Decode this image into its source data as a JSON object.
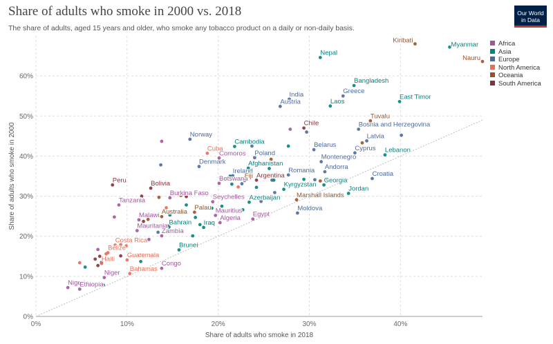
{
  "header": {
    "title": "Share of adults who smoke in 2000 vs. 2018",
    "subtitle": "The share of adults, aged 15 years and older, who smoke any tobacco product on a daily or non-daily basis.",
    "logo_line1": "Our World",
    "logo_line2": "in Data"
  },
  "colors": {
    "Africa": "#a2559c",
    "Asia": "#00847e",
    "Europe": "#4c6a9c",
    "North America": "#e56e5a",
    "Oceania": "#9a5129",
    "South America": "#883039",
    "grid": "#dddddd",
    "axis_text": "#666666"
  },
  "chart_data": {
    "type": "scatter",
    "xlabel": "Share of adults who smoke in 2018",
    "ylabel": "Share of adults who smoke in 2000",
    "xlim": [
      0,
      49
    ],
    "ylim": [
      0,
      70
    ],
    "x_ticks": [
      0,
      10,
      20,
      30,
      40
    ],
    "y_ticks": [
      0,
      10,
      20,
      30,
      40,
      50,
      60
    ],
    "x_tick_labels": [
      "0%",
      "10%",
      "20%",
      "30%",
      "40%"
    ],
    "y_tick_labels": [
      "0%",
      "10%",
      "20%",
      "30%",
      "40%",
      "50%",
      "60%"
    ],
    "grid": true,
    "reference_line": "y = x",
    "legend": {
      "position": "top-right",
      "entries": [
        "Africa",
        "Asia",
        "Europe",
        "North America",
        "Oceania",
        "South America"
      ]
    },
    "series": [
      {
        "name": "Africa",
        "points": [
          {
            "label": "Nigeria",
            "x": 3.5,
            "y": 7.2
          },
          {
            "label": "Ethiopia",
            "x": 4.8,
            "y": 6.8
          },
          {
            "label": "Niger",
            "x": 7.5,
            "y": 9.7
          },
          {
            "label": "Tanzania",
            "x": 9.1,
            "y": 27.8
          },
          {
            "label": "Malawi",
            "x": 11.3,
            "y": 24.1
          },
          {
            "label": "Mauritania",
            "x": 11.1,
            "y": 21.4
          },
          {
            "label": "Zambia",
            "x": 13.8,
            "y": 20.1
          },
          {
            "label": "Congo",
            "x": 13.8,
            "y": 12.0
          },
          {
            "label": "Burkina Faso",
            "x": 14.7,
            "y": 29.6
          },
          {
            "label": "Comoros",
            "x": 20.1,
            "y": 39.5
          },
          {
            "label": "Botswana",
            "x": 20.1,
            "y": 33.2
          },
          {
            "label": "Seychelles",
            "x": 19.4,
            "y": 28.6
          },
          {
            "label": "Mauritius",
            "x": 19.7,
            "y": 25.2
          },
          {
            "label": "Algeria",
            "x": 20.2,
            "y": 23.4
          },
          {
            "label": "Egypt",
            "x": 23.8,
            "y": 24.3
          },
          {
            "label": "",
            "x": 13.8,
            "y": 43.7
          },
          {
            "label": "",
            "x": 8.6,
            "y": 24.8
          },
          {
            "label": "",
            "x": 6.8,
            "y": 16.7
          },
          {
            "label": "",
            "x": 10.4,
            "y": 18.7
          },
          {
            "label": "",
            "x": 12.4,
            "y": 19.2
          },
          {
            "label": "",
            "x": 27.9,
            "y": 46.7
          }
        ]
      },
      {
        "name": "Asia",
        "points": [
          {
            "label": "Myanmar",
            "x": 45.4,
            "y": 67.2
          },
          {
            "label": "Nepal",
            "x": 31.2,
            "y": 64.6
          },
          {
            "label": "Bangladesh",
            "x": 34.9,
            "y": 57.6
          },
          {
            "label": "Laos",
            "x": 32.3,
            "y": 52.5
          },
          {
            "label": "East Timor",
            "x": 39.9,
            "y": 53.6
          },
          {
            "label": "Cambodia",
            "x": 21.8,
            "y": 42.4
          },
          {
            "label": "Afghanistan",
            "x": 23.3,
            "y": 37.0
          },
          {
            "label": "Lebanon",
            "x": 38.3,
            "y": 40.3
          },
          {
            "label": "Georgia",
            "x": 31.6,
            "y": 32.8
          },
          {
            "label": "Kyrgyzstan",
            "x": 27.2,
            "y": 31.7
          },
          {
            "label": "Jordan",
            "x": 34.3,
            "y": 30.7
          },
          {
            "label": "Azerbaijan",
            "x": 23.4,
            "y": 28.5
          },
          {
            "label": "Bahrain",
            "x": 14.6,
            "y": 22.3
          },
          {
            "label": "Iraq",
            "x": 18.4,
            "y": 22.2
          },
          {
            "label": "Brunei",
            "x": 15.7,
            "y": 16.6
          },
          {
            "label": "",
            "x": 5.4,
            "y": 12.3
          },
          {
            "label": "",
            "x": 7.4,
            "y": 7.8
          },
          {
            "label": "",
            "x": 11.5,
            "y": 13.7
          },
          {
            "label": "",
            "x": 17.2,
            "y": 20.1
          },
          {
            "label": "",
            "x": 18.0,
            "y": 22.9
          },
          {
            "label": "",
            "x": 20.4,
            "y": 27.5
          },
          {
            "label": "",
            "x": 22.7,
            "y": 26.6
          },
          {
            "label": "",
            "x": 17.5,
            "y": 24.7
          },
          {
            "label": "",
            "x": 19.3,
            "y": 27.0
          },
          {
            "label": "",
            "x": 21.5,
            "y": 33.0
          },
          {
            "label": "",
            "x": 21.3,
            "y": 35.0
          },
          {
            "label": "",
            "x": 22.8,
            "y": 34.2
          },
          {
            "label": "",
            "x": 26.1,
            "y": 34.0
          },
          {
            "label": "",
            "x": 29.4,
            "y": 34.2
          },
          {
            "label": "",
            "x": 31.9,
            "y": 34.3
          },
          {
            "label": "",
            "x": 25.6,
            "y": 36.9
          },
          {
            "label": "",
            "x": 24.9,
            "y": 35.0
          },
          {
            "label": "",
            "x": 24.2,
            "y": 32.2
          },
          {
            "label": "",
            "x": 27.7,
            "y": 42.5
          },
          {
            "label": "",
            "x": 14.7,
            "y": 25.3
          },
          {
            "label": "",
            "x": 16.5,
            "y": 27.8
          }
        ]
      },
      {
        "name": "Europe",
        "points": [
          {
            "label": "India",
            "x": 27.8,
            "y": 54.2
          },
          {
            "label": "Austria",
            "x": 26.8,
            "y": 52.4
          },
          {
            "label": "Greece",
            "x": 33.7,
            "y": 55.0
          },
          {
            "label": "Bosnia and Herzegovina",
            "x": 35.4,
            "y": 46.7
          },
          {
            "label": "Norway",
            "x": 16.9,
            "y": 44.2
          },
          {
            "label": "Belarus",
            "x": 30.5,
            "y": 41.6
          },
          {
            "label": "Latvia",
            "x": 36.3,
            "y": 43.8
          },
          {
            "label": "Cyprus",
            "x": 35.0,
            "y": 40.8
          },
          {
            "label": "Denmark",
            "x": 17.9,
            "y": 37.4
          },
          {
            "label": "Poland",
            "x": 24.0,
            "y": 39.6
          },
          {
            "label": "Montenegro",
            "x": 31.3,
            "y": 38.6
          },
          {
            "label": "Ireland",
            "x": 21.6,
            "y": 35.1
          },
          {
            "label": "Romania",
            "x": 27.7,
            "y": 35.3
          },
          {
            "label": "Andorra",
            "x": 31.7,
            "y": 36.1
          },
          {
            "label": "Croatia",
            "x": 36.9,
            "y": 34.4
          },
          {
            "label": "Moldova",
            "x": 28.7,
            "y": 25.8
          },
          {
            "label": "",
            "x": 40.1,
            "y": 45.2
          },
          {
            "label": "",
            "x": 29.7,
            "y": 46.0
          },
          {
            "label": "",
            "x": 23.7,
            "y": 42.5
          },
          {
            "label": "",
            "x": 13.7,
            "y": 37.8
          },
          {
            "label": "",
            "x": 20.7,
            "y": 34.4
          },
          {
            "label": "",
            "x": 25.9,
            "y": 34.0
          },
          {
            "label": "",
            "x": 33.4,
            "y": 33.3
          },
          {
            "label": "",
            "x": 30.6,
            "y": 34.1
          },
          {
            "label": "",
            "x": 23.0,
            "y": 34.7
          },
          {
            "label": "",
            "x": 26.2,
            "y": 30.9
          },
          {
            "label": "",
            "x": 24.7,
            "y": 28.7
          },
          {
            "label": "",
            "x": 21.7,
            "y": 26.6
          },
          {
            "label": "",
            "x": 22.6,
            "y": 33.1
          },
          {
            "label": "",
            "x": 13.4,
            "y": 21.0
          },
          {
            "label": "",
            "x": 14.5,
            "y": 22.6
          },
          {
            "label": "",
            "x": 7.2,
            "y": 13.5
          }
        ]
      },
      {
        "name": "North America",
        "points": [
          {
            "label": "Cuba",
            "x": 18.8,
            "y": 40.7
          },
          {
            "label": "Costa Rica",
            "x": 8.7,
            "y": 17.8
          },
          {
            "label": "Belize",
            "x": 7.9,
            "y": 15.9
          },
          {
            "label": "Guatemala",
            "x": 10.0,
            "y": 14.1
          },
          {
            "label": "Haiti",
            "x": 7.2,
            "y": 13.2
          },
          {
            "label": "Bahamas",
            "x": 10.3,
            "y": 10.7
          },
          {
            "label": "",
            "x": 4.8,
            "y": 13.4
          },
          {
            "label": "",
            "x": 7.7,
            "y": 15.6
          },
          {
            "label": "",
            "x": 9.3,
            "y": 17.9
          },
          {
            "label": "",
            "x": 9.9,
            "y": 17.6
          },
          {
            "label": "",
            "x": 22.2,
            "y": 32.3
          },
          {
            "label": "",
            "x": 14.3,
            "y": 27.1
          }
        ]
      },
      {
        "name": "Oceania",
        "points": [
          {
            "label": "Kiribati",
            "x": 41.6,
            "y": 68.0
          },
          {
            "label": "Nauru",
            "x": 49.0,
            "y": 63.6
          },
          {
            "label": "Tuvalu",
            "x": 36.7,
            "y": 48.8
          },
          {
            "label": "Fiji",
            "x": 22.9,
            "y": 33.9
          },
          {
            "label": "Australia",
            "x": 13.8,
            "y": 24.9
          },
          {
            "label": "Palau",
            "x": 17.4,
            "y": 26.0
          },
          {
            "label": "Marshall Islands",
            "x": 28.6,
            "y": 29.1
          },
          {
            "label": "",
            "x": 25.8,
            "y": 39.2
          },
          {
            "label": "",
            "x": 12.3,
            "y": 24.2
          },
          {
            "label": "",
            "x": 13.5,
            "y": 29.7
          },
          {
            "label": "",
            "x": 15.9,
            "y": 30.2
          },
          {
            "label": "",
            "x": 35.8,
            "y": 43.3
          },
          {
            "label": "",
            "x": 31.2,
            "y": 33.8
          }
        ]
      },
      {
        "name": "South America",
        "points": [
          {
            "label": "Peru",
            "x": 8.4,
            "y": 32.8
          },
          {
            "label": "Bolivia",
            "x": 12.6,
            "y": 32.0
          },
          {
            "label": "Chile",
            "x": 29.4,
            "y": 47.0
          },
          {
            "label": "Argentina",
            "x": 24.2,
            "y": 34.0
          },
          {
            "label": "",
            "x": 11.6,
            "y": 30.0
          },
          {
            "label": "",
            "x": 8.9,
            "y": 16.9
          },
          {
            "label": "",
            "x": 6.5,
            "y": 14.3
          },
          {
            "label": "",
            "x": 7.0,
            "y": 15.0
          },
          {
            "label": "",
            "x": 6.8,
            "y": 12.7
          },
          {
            "label": "",
            "x": 11.8,
            "y": 23.7
          },
          {
            "label": "",
            "x": 16.5,
            "y": 29.9
          },
          {
            "label": "",
            "x": 9.3,
            "y": 15.1
          }
        ]
      }
    ]
  }
}
